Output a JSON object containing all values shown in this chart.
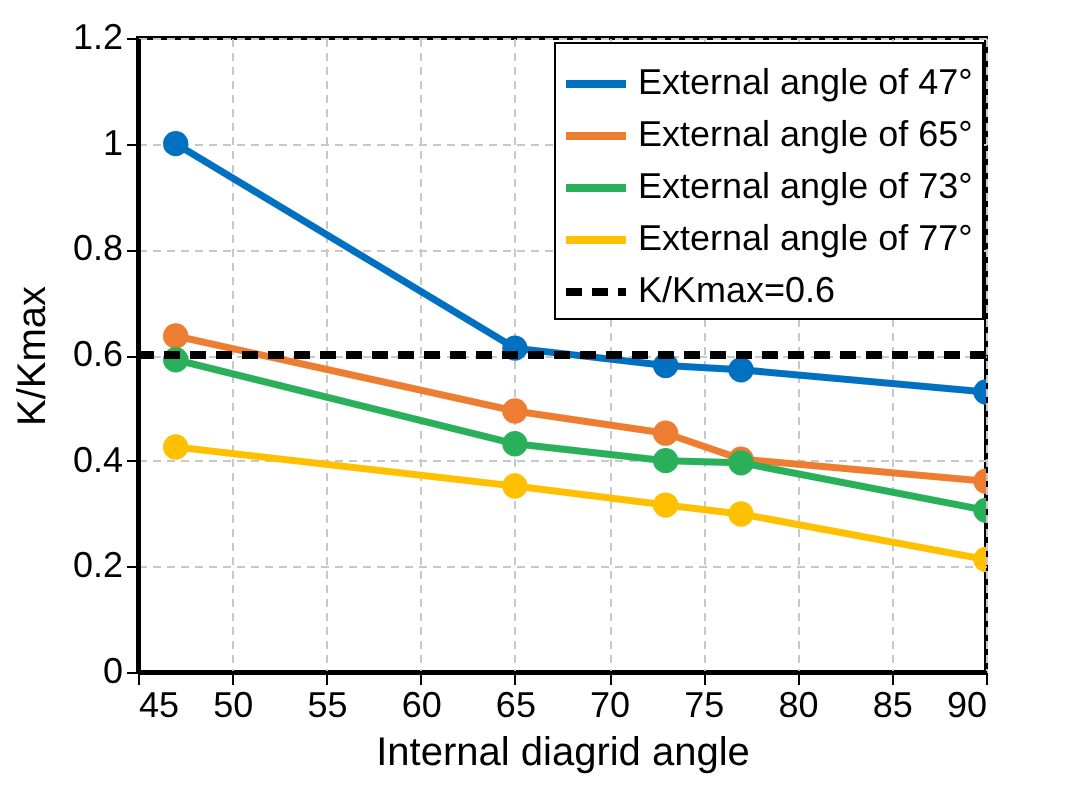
{
  "chart_data": {
    "type": "line",
    "xlabel": "Internal diagrid angle",
    "ylabel": "K/Kmax",
    "x": [
      47,
      65,
      73,
      77,
      90
    ],
    "series": [
      {
        "name": "External angle of 47°",
        "color": "#0070c0",
        "values": [
          1.0,
          0.613,
          0.58,
          0.572,
          0.53
        ]
      },
      {
        "name": "External angle of 65°",
        "color": "#ed7d31",
        "values": [
          0.636,
          0.494,
          0.452,
          0.403,
          0.361
        ]
      },
      {
        "name": "External angle of 73°",
        "color": "#2ab05a",
        "values": [
          0.591,
          0.432,
          0.4,
          0.396,
          0.306
        ]
      },
      {
        "name": "External angle of 77°",
        "color": "#ffc000",
        "values": [
          0.426,
          0.352,
          0.316,
          0.299,
          0.213
        ]
      }
    ],
    "ref_lines": [
      {
        "axis": "y",
        "value": 0.6,
        "label": "K/Kmax=0.6",
        "color": "#000000",
        "line_style": "dashed"
      }
    ],
    "xlim": [
      45,
      90
    ],
    "xticks": [
      45,
      50,
      55,
      60,
      65,
      70,
      75,
      80,
      85,
      90
    ],
    "ylim": [
      0,
      1.2
    ],
    "yticks": [
      0,
      0.2,
      0.4,
      0.6,
      0.8,
      1,
      1.2
    ],
    "grid": true,
    "legend": "top right",
    "marker": "circle",
    "line_style": "solid"
  }
}
